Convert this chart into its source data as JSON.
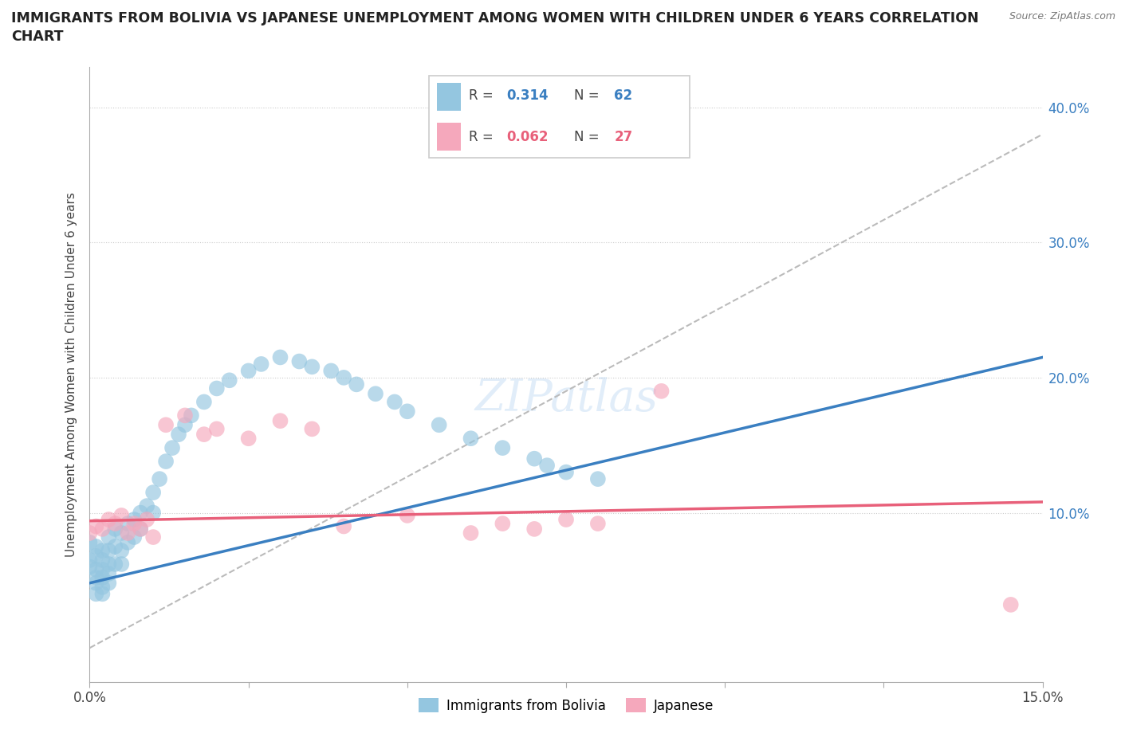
{
  "title_line1": "IMMIGRANTS FROM BOLIVIA VS JAPANESE UNEMPLOYMENT AMONG WOMEN WITH CHILDREN UNDER 6 YEARS CORRELATION",
  "title_line2": "CHART",
  "source": "Source: ZipAtlas.com",
  "ylabel": "Unemployment Among Women with Children Under 6 years",
  "xmin": 0.0,
  "xmax": 0.15,
  "ymin": -0.025,
  "ymax": 0.43,
  "bolivia_R": "0.314",
  "bolivia_N": "62",
  "japanese_R": "0.062",
  "japanese_N": "27",
  "bolivia_color": "#94C6E0",
  "japanese_color": "#F5A8BC",
  "bolivia_line_color": "#3A7FC1",
  "japanese_line_color": "#E8607A",
  "dash_line_color": "#BBBBBB",
  "legend_label_bolivia": "Immigrants from Bolivia",
  "legend_label_japanese": "Japanese",
  "bolivia_scatter_x": [
    0.0,
    0.0,
    0.0,
    0.001,
    0.001,
    0.001,
    0.001,
    0.001,
    0.001,
    0.002,
    0.002,
    0.002,
    0.002,
    0.002,
    0.002,
    0.003,
    0.003,
    0.003,
    0.003,
    0.003,
    0.004,
    0.004,
    0.004,
    0.005,
    0.005,
    0.005,
    0.006,
    0.006,
    0.007,
    0.007,
    0.008,
    0.008,
    0.009,
    0.01,
    0.01,
    0.011,
    0.012,
    0.013,
    0.014,
    0.015,
    0.016,
    0.018,
    0.02,
    0.022,
    0.025,
    0.027,
    0.03,
    0.033,
    0.035,
    0.038,
    0.04,
    0.042,
    0.045,
    0.048,
    0.05,
    0.055,
    0.06,
    0.065,
    0.07,
    0.072,
    0.075,
    0.08
  ],
  "bolivia_scatter_y": [
    0.078,
    0.065,
    0.06,
    0.075,
    0.068,
    0.058,
    0.052,
    0.048,
    0.04,
    0.072,
    0.065,
    0.058,
    0.052,
    0.045,
    0.04,
    0.082,
    0.072,
    0.062,
    0.055,
    0.048,
    0.088,
    0.075,
    0.062,
    0.085,
    0.072,
    0.062,
    0.092,
    0.078,
    0.095,
    0.082,
    0.1,
    0.088,
    0.105,
    0.115,
    0.1,
    0.125,
    0.138,
    0.148,
    0.158,
    0.165,
    0.172,
    0.182,
    0.192,
    0.198,
    0.205,
    0.21,
    0.215,
    0.212,
    0.208,
    0.205,
    0.2,
    0.195,
    0.188,
    0.182,
    0.175,
    0.165,
    0.155,
    0.148,
    0.14,
    0.135,
    0.13,
    0.125
  ],
  "japanese_scatter_x": [
    0.0,
    0.001,
    0.002,
    0.003,
    0.004,
    0.005,
    0.006,
    0.007,
    0.008,
    0.009,
    0.01,
    0.012,
    0.015,
    0.018,
    0.02,
    0.025,
    0.03,
    0.035,
    0.04,
    0.05,
    0.06,
    0.065,
    0.07,
    0.075,
    0.08,
    0.09,
    0.145
  ],
  "japanese_scatter_y": [
    0.085,
    0.09,
    0.088,
    0.095,
    0.092,
    0.098,
    0.085,
    0.092,
    0.088,
    0.095,
    0.082,
    0.165,
    0.172,
    0.158,
    0.162,
    0.155,
    0.168,
    0.162,
    0.09,
    0.098,
    0.085,
    0.092,
    0.088,
    0.095,
    0.092,
    0.19,
    0.032
  ],
  "bolivia_trendline_x": [
    0.0,
    0.15
  ],
  "bolivia_trendline_y": [
    0.048,
    0.215
  ],
  "japanese_trendline_x": [
    0.0,
    0.15
  ],
  "japanese_trendline_y": [
    0.094,
    0.108
  ],
  "dash_line_x": [
    0.0,
    0.15
  ],
  "dash_line_y": [
    0.0,
    0.38
  ]
}
